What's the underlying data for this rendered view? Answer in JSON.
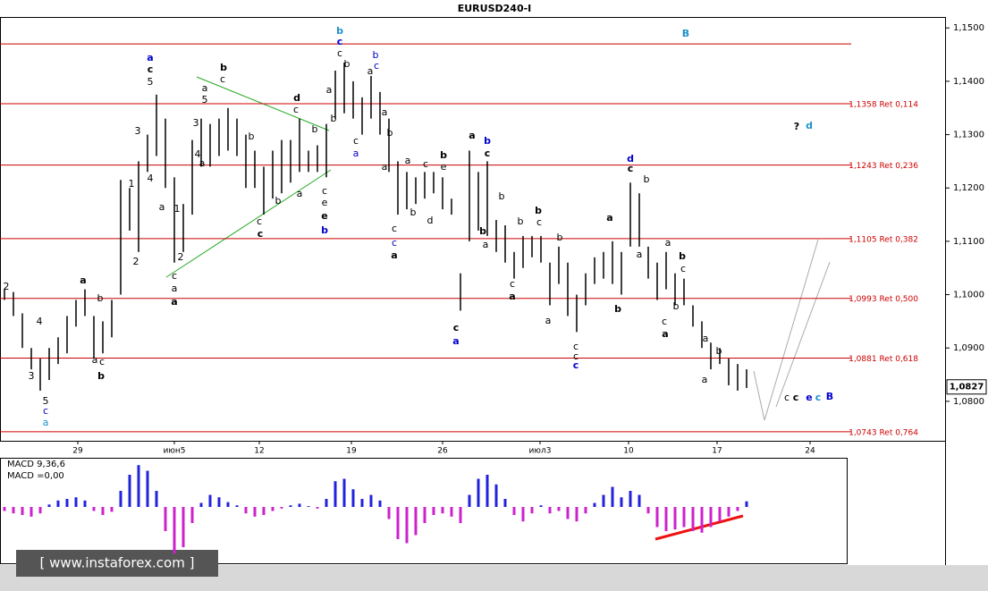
{
  "chart_data": [
    {
      "type": "ohlc",
      "title": "EURUSD240-I",
      "x": [
        0,
        1,
        2,
        3,
        4,
        5,
        6,
        7,
        8,
        9,
        10,
        11,
        12,
        13,
        14,
        15,
        16,
        17,
        18,
        19,
        20,
        21,
        22,
        23,
        24,
        25,
        26,
        27,
        28,
        29,
        30,
        31,
        32,
        33,
        34,
        35,
        36,
        37,
        38,
        39,
        40,
        41,
        42,
        43,
        44,
        45,
        46,
        47,
        48,
        49,
        50,
        51,
        52,
        53,
        54,
        55,
        56,
        57,
        58,
        59,
        60,
        61,
        62,
        63,
        64,
        65,
        66,
        67,
        68,
        69,
        70,
        71,
        72,
        73,
        74,
        75,
        76,
        77,
        78,
        79,
        80,
        81,
        82,
        83
      ],
      "high": [
        1.101,
        1.1005,
        1.0965,
        1.09,
        1.088,
        1.09,
        1.092,
        1.096,
        1.099,
        1.101,
        1.096,
        1.095,
        1.099,
        1.1215,
        1.12,
        1.125,
        1.13,
        1.1375,
        1.133,
        1.122,
        1.117,
        1.129,
        1.133,
        1.132,
        1.133,
        1.135,
        1.133,
        1.13,
        1.127,
        1.124,
        1.127,
        1.129,
        1.129,
        1.133,
        1.127,
        1.128,
        1.132,
        1.142,
        1.1435,
        1.14,
        1.137,
        1.141,
        1.138,
        1.133,
        1.125,
        1.123,
        1.122,
        1.123,
        1.123,
        1.122,
        1.118,
        1.104,
        1.127,
        1.123,
        1.125,
        1.114,
        1.113,
        1.108,
        1.111,
        1.111,
        1.111,
        1.106,
        1.109,
        1.106,
        1.1,
        1.104,
        1.107,
        1.108,
        1.11,
        1.108,
        1.121,
        1.119,
        1.109,
        1.106,
        1.108,
        1.104,
        1.103,
        1.098,
        1.095,
        1.091,
        1.09,
        1.088,
        1.087,
        1.086
      ],
      "low": [
        1.099,
        1.096,
        1.09,
        1.086,
        1.082,
        1.084,
        1.087,
        1.089,
        1.094,
        1.096,
        1.088,
        1.089,
        1.092,
        1.1,
        1.112,
        1.108,
        1.123,
        1.126,
        1.12,
        1.106,
        1.108,
        1.115,
        1.124,
        1.124,
        1.126,
        1.127,
        1.126,
        1.12,
        1.12,
        1.115,
        1.118,
        1.119,
        1.121,
        1.123,
        1.123,
        1.123,
        1.122,
        1.133,
        1.134,
        1.133,
        1.13,
        1.133,
        1.13,
        1.123,
        1.115,
        1.116,
        1.117,
        1.118,
        1.119,
        1.116,
        1.115,
        1.097,
        1.11,
        1.112,
        1.111,
        1.108,
        1.106,
        1.103,
        1.105,
        1.107,
        1.106,
        1.098,
        1.102,
        1.096,
        1.093,
        1.098,
        1.102,
        1.103,
        1.102,
        1.1,
        1.109,
        1.109,
        1.103,
        1.099,
        1.101,
        1.098,
        1.098,
        1.094,
        1.09,
        1.086,
        1.087,
        1.083,
        1.082,
        1.0825
      ],
      "color": "#000000",
      "xlim": [
        -0.5,
        105.2
      ],
      "xticks": [
        {
          "value": 8.2,
          "label": "29"
        },
        {
          "value": 19,
          "label": "июн5"
        },
        {
          "value": 28.5,
          "label": "12"
        },
        {
          "value": 38.8,
          "label": "19"
        },
        {
          "value": 49,
          "label": "26"
        },
        {
          "value": 59.9,
          "label": "июл3"
        },
        {
          "value": 69.8,
          "label": "10"
        },
        {
          "value": 79.7,
          "label": "17"
        },
        {
          "value": 90.1,
          "label": "24"
        }
      ],
      "ylim": [
        1.0726,
        1.1544
      ],
      "yticks": [
        {
          "value": 1.08,
          "label": "1,0800"
        },
        {
          "value": 1.09,
          "label": "1,0900"
        },
        {
          "value": 1.1,
          "label": "1,1000"
        },
        {
          "value": 1.11,
          "label": "1,1100"
        },
        {
          "value": 1.12,
          "label": "1,1200"
        },
        {
          "value": 1.13,
          "label": "1,1300"
        },
        {
          "value": 1.14,
          "label": "1,1400"
        },
        {
          "value": 1.15,
          "label": "1,1500"
        }
      ],
      "levels": [
        {
          "value": 1.147
        },
        {
          "value": 1.1358,
          "label": "1,1358 Ret 0,114"
        },
        {
          "value": 1.1243,
          "label": "1,1243 Ret 0,236"
        },
        {
          "value": 1.1105,
          "label": "1,1105 Ret 0,382"
        },
        {
          "value": 1.0993,
          "label": "1,0993 Ret 0,500"
        },
        {
          "value": 1.0881,
          "label": "1,0881 Ret 0,618"
        },
        {
          "value": 1.0743,
          "label": "1,0743 Ret 0,764"
        }
      ],
      "level_color": "#cc0000",
      "current_price": {
        "value": 1.0827,
        "label": "1,0827"
      },
      "annotations": [
        {
          "text": "2",
          "color": "#000000"
        },
        {
          "text": "4",
          "color": "#000000"
        },
        {
          "text": "3",
          "color": "#000000"
        },
        {
          "text": "5",
          "color": "#000000"
        },
        {
          "text": "c",
          "color": "#0000cc"
        },
        {
          "text": "a",
          "color": "#1e90c8"
        },
        {
          "text": "a",
          "color": "#000000",
          "bold": true
        },
        {
          "text": "b",
          "color": "#000000"
        },
        {
          "text": "a",
          "color": "#000000"
        },
        {
          "text": "c",
          "color": "#000000"
        },
        {
          "text": "b",
          "color": "#000000",
          "bold": true
        },
        {
          "text": "1",
          "color": "#000000"
        },
        {
          "text": "2",
          "color": "#000000"
        },
        {
          "text": "3",
          "color": "#000000"
        },
        {
          "text": "4",
          "color": "#000000"
        },
        {
          "text": "5",
          "color": "#000000"
        },
        {
          "text": "c",
          "color": "#000000",
          "bold": true
        },
        {
          "text": "a",
          "color": "#0000cc",
          "bold": true
        },
        {
          "text": "a",
          "color": "#000000"
        },
        {
          "text": "1",
          "color": "#000000"
        },
        {
          "text": "2",
          "color": "#000000"
        },
        {
          "text": "c",
          "color": "#000000"
        },
        {
          "text": "a",
          "color": "#000000"
        },
        {
          "text": "a",
          "color": "#000000",
          "bold": true
        },
        {
          "text": "3",
          "color": "#000000"
        },
        {
          "text": "4",
          "color": "#000000"
        },
        {
          "text": "5",
          "color": "#000000"
        },
        {
          "text": "a",
          "color": "#000000"
        },
        {
          "text": "b",
          "color": "#000000",
          "bold": true
        },
        {
          "text": "c",
          "color": "#000000"
        },
        {
          "text": "a",
          "color": "#000000"
        },
        {
          "text": "b",
          "color": "#000000"
        },
        {
          "text": "c",
          "color": "#000000"
        },
        {
          "text": "c",
          "color": "#000000",
          "bold": true
        },
        {
          "text": "d",
          "color": "#000000",
          "bold": true
        },
        {
          "text": "c",
          "color": "#000000"
        },
        {
          "text": "a",
          "color": "#000000"
        },
        {
          "text": "b",
          "color": "#000000"
        },
        {
          "text": "b",
          "color": "#000000"
        },
        {
          "text": "c",
          "color": "#000000"
        },
        {
          "text": "e",
          "color": "#000000"
        },
        {
          "text": "e",
          "color": "#000000",
          "bold": true
        },
        {
          "text": "b",
          "color": "#0000cc",
          "bold": true
        },
        {
          "text": "b",
          "color": "#1e90c8",
          "bold": true
        },
        {
          "text": "c",
          "color": "#0000cc",
          "bold": true
        },
        {
          "text": "c",
          "color": "#000000"
        },
        {
          "text": "b",
          "color": "#000000"
        },
        {
          "text": "a",
          "color": "#000000"
        },
        {
          "text": "b",
          "color": "#000000"
        },
        {
          "text": "c",
          "color": "#000000"
        },
        {
          "text": "a",
          "color": "#0000cc"
        },
        {
          "text": "b",
          "color": "#0000cc"
        },
        {
          "text": "c",
          "color": "#0000cc"
        },
        {
          "text": "a",
          "color": "#000000"
        },
        {
          "text": "a",
          "color": "#000000"
        },
        {
          "text": "b",
          "color": "#000000"
        },
        {
          "text": "a",
          "color": "#000000"
        },
        {
          "text": "a",
          "color": "#000000"
        },
        {
          "text": "c",
          "color": "#000000"
        },
        {
          "text": "b",
          "color": "#000000",
          "bold": true
        },
        {
          "text": "e",
          "color": "#000000"
        },
        {
          "text": "d",
          "color": "#000000"
        },
        {
          "text": "b",
          "color": "#000000"
        },
        {
          "text": "c",
          "color": "#000000"
        },
        {
          "text": "c",
          "color": "#0000cc"
        },
        {
          "text": "a",
          "color": "#000000",
          "bold": true
        },
        {
          "text": "c",
          "color": "#000000",
          "bold": true
        },
        {
          "text": "a",
          "color": "#0000cc",
          "bold": true
        },
        {
          "text": "a",
          "color": "#000000",
          "bold": true
        },
        {
          "text": "b",
          "color": "#0000cc",
          "bold": true
        },
        {
          "text": "c",
          "color": "#000000",
          "bold": true
        },
        {
          "text": "b",
          "color": "#000000"
        },
        {
          "text": "b",
          "color": "#000000",
          "bold": true
        },
        {
          "text": "a",
          "color": "#000000"
        },
        {
          "text": "b",
          "color": "#000000"
        },
        {
          "text": "c",
          "color": "#000000"
        },
        {
          "text": "a",
          "color": "#000000",
          "bold": true
        },
        {
          "text": "b",
          "color": "#000000",
          "bold": true
        },
        {
          "text": "c",
          "color": "#000000"
        },
        {
          "text": "b",
          "color": "#000000"
        },
        {
          "text": "a",
          "color": "#000000"
        },
        {
          "text": "c",
          "color": "#000000"
        },
        {
          "text": "c",
          "color": "#000000"
        },
        {
          "text": "c",
          "color": "#0000cc",
          "bold": true
        },
        {
          "text": "a",
          "color": "#000000",
          "bold": true
        },
        {
          "text": "b",
          "color": "#000000",
          "bold": true
        },
        {
          "text": "d",
          "color": "#0000cc",
          "bold": true
        },
        {
          "text": "c",
          "color": "#000000",
          "bold": true
        },
        {
          "text": "b",
          "color": "#000000"
        },
        {
          "text": "a",
          "color": "#000000"
        },
        {
          "text": "a",
          "color": "#000000"
        },
        {
          "text": "b",
          "color": "#000000",
          "bold": true
        },
        {
          "text": "c",
          "color": "#000000"
        },
        {
          "text": "b",
          "color": "#000000"
        },
        {
          "text": "c",
          "color": "#000000"
        },
        {
          "text": "a",
          "color": "#000000",
          "bold": true
        },
        {
          "text": "a",
          "color": "#000000"
        },
        {
          "text": "b",
          "color": "#000000"
        },
        {
          "text": "a",
          "color": "#000000"
        },
        {
          "text": "B",
          "color": "#1e90c8",
          "bold": true
        },
        {
          "text": "?",
          "color": "#000000",
          "bold": true
        },
        {
          "text": "d",
          "color": "#1e90c8",
          "bold": true
        },
        {
          "text": "c",
          "color": "#000000"
        },
        {
          "text": "c",
          "color": "#000000",
          "bold": true
        },
        {
          "text": "e",
          "color": "#0000cc",
          "bold": true
        },
        {
          "text": "c",
          "color": "#1e90c8",
          "bold": true
        },
        {
          "text": "B",
          "color": "#0000cc",
          "bold": true
        }
      ]
    },
    {
      "type": "bar",
      "title": "MACD 9,36,6",
      "subtitle": "MACD =0,00",
      "values": [
        -0.0005,
        -0.0008,
        -0.001,
        -0.0012,
        -0.0008,
        0.0003,
        0.0008,
        0.001,
        0.0012,
        0.0008,
        -0.0005,
        -0.001,
        -0.0006,
        0.002,
        0.004,
        0.0052,
        0.0045,
        0.002,
        -0.003,
        -0.0058,
        -0.005,
        -0.002,
        0.0005,
        0.0015,
        0.0012,
        0.0006,
        0.0002,
        -0.0008,
        -0.0012,
        -0.001,
        -0.0005,
        -0.0002,
        0.0002,
        0.0004,
        0.0001,
        -0.0002,
        0.001,
        0.0032,
        0.0035,
        0.0022,
        0.001,
        0.0015,
        0.0008,
        -0.0015,
        -0.004,
        -0.0045,
        -0.0035,
        -0.002,
        -0.001,
        -0.0008,
        -0.0012,
        -0.002,
        0.0015,
        0.0035,
        0.004,
        0.0028,
        0.001,
        -0.001,
        -0.0018,
        -0.0008,
        0.0002,
        -0.0008,
        -0.0005,
        -0.0015,
        -0.0018,
        -0.0008,
        0.0005,
        0.0015,
        0.0025,
        0.0012,
        0.002,
        0.0015,
        -0.0008,
        -0.0025,
        -0.003,
        -0.0028,
        -0.0025,
        -0.003,
        -0.0032,
        -0.0025,
        -0.0018,
        -0.0012,
        -0.0005,
        0.0007
      ],
      "color_up": "#2222dd",
      "color_down": "#cc22cc",
      "ylim": [
        -0.007,
        0.006
      ]
    }
  ],
  "watermark": "[ www.instaforex.com ]"
}
